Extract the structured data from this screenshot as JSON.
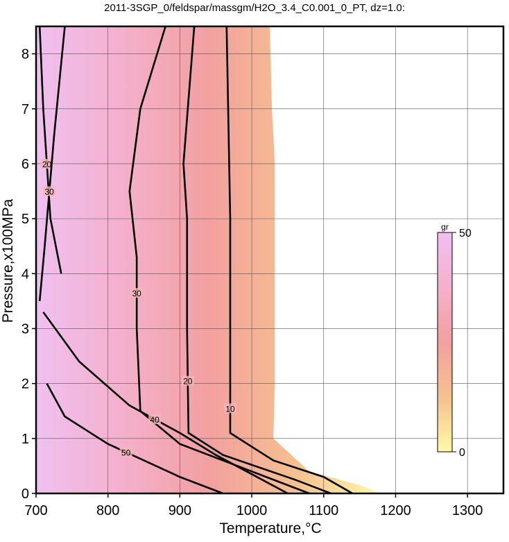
{
  "chart_data": {
    "type": "contour",
    "title": "2011-3SGP_0/feldspar/massgm/H2O_3.4_C0.001_0_PT, dz=1.0:",
    "x_label": "Temperature,°C",
    "y_label": "Pressure,x100MPa",
    "xlim": [
      700,
      1350
    ],
    "ylim": [
      0,
      8.5
    ],
    "xticks": [
      700,
      800,
      900,
      1000,
      1100,
      1200,
      1300
    ],
    "yticks": [
      0,
      1,
      2,
      3,
      4,
      5,
      6,
      7,
      8
    ],
    "grid": true,
    "region": {
      "x": [
        700,
        1025,
        1028,
        1032,
        1032,
        1032,
        1030,
        1080,
        1150,
        1180,
        700
      ],
      "y": [
        8.5,
        8.5,
        7,
        6,
        4,
        2,
        1,
        0.4,
        0.15,
        0,
        0
      ]
    },
    "colormap": [
      "#fff9a8",
      "#f5c08f",
      "#f2a0a0",
      "#f4b0cc",
      "#f0c0f0"
    ],
    "contours": [
      {
        "level": 10,
        "x": [
          965,
          970,
          970,
          970,
          1030,
          1100,
          1140
        ],
        "y": [
          8.5,
          5,
          2,
          1.1,
          0.6,
          0.3,
          0
        ]
      },
      {
        "level": 20,
        "x": [
          920,
          905,
          910,
          910,
          912,
          960,
          1060,
          1110
        ],
        "y": [
          8.5,
          6,
          5,
          3,
          1.1,
          0.7,
          0.25,
          0
        ]
      },
      {
        "level": 30,
        "x": [
          880,
          845,
          830,
          840,
          840,
          845,
          900,
          1000,
          1080
        ],
        "y": [
          8.5,
          7,
          5.5,
          4.3,
          3,
          1.5,
          0.9,
          0.4,
          0
        ]
      },
      {
        "level": 40,
        "x": [
          710,
          760,
          830,
          900,
          950,
          1050
        ],
        "y": [
          3.3,
          2.4,
          1.6,
          1.1,
          0.7,
          0
        ]
      },
      {
        "level": 50,
        "x": [
          715,
          740,
          800,
          850,
          900,
          960
        ],
        "y": [
          2.0,
          1.4,
          0.9,
          0.6,
          0.3,
          0
        ]
      },
      {
        "level": 20,
        "x": [
          705,
          710,
          720,
          735
        ],
        "y": [
          8.5,
          7,
          5,
          4
        ]
      },
      {
        "level": 30,
        "x": [
          740,
          725,
          712,
          705
        ],
        "y": [
          8.5,
          6.5,
          4.5,
          3.5
        ]
      }
    ],
    "colorbar": {
      "label": "gr",
      "lim": [
        0,
        50
      ],
      "ticks": [
        0,
        50
      ]
    }
  }
}
